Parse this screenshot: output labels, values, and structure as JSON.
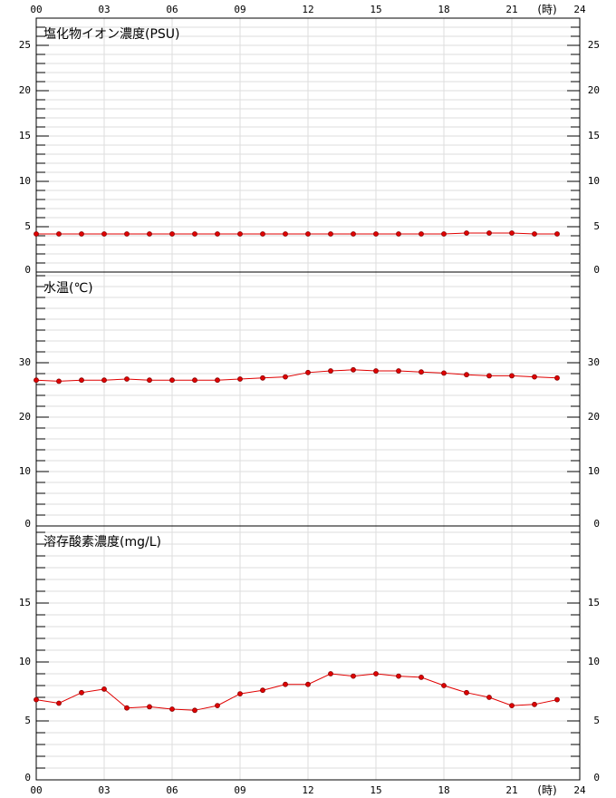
{
  "chart_data": [
    {
      "type": "line",
      "title": "塩化物イオン濃度(PSU)",
      "x_unit_label": "(時)",
      "x": [
        0,
        1,
        2,
        3,
        4,
        5,
        6,
        7,
        8,
        9,
        10,
        11,
        12,
        13,
        14,
        15,
        16,
        17,
        18,
        19,
        20,
        21,
        22,
        23
      ],
      "xlim": [
        0,
        24
      ],
      "xticks": [
        {
          "value": 0,
          "label": "00"
        },
        {
          "value": 3,
          "label": "03"
        },
        {
          "value": 6,
          "label": "06"
        },
        {
          "value": 9,
          "label": "09"
        },
        12,
        15,
        18,
        21,
        24
      ],
      "series": [
        {
          "color": "#e00000",
          "values": [
            4.2,
            4.2,
            4.2,
            4.2,
            4.2,
            4.2,
            4.2,
            4.2,
            4.2,
            4.2,
            4.2,
            4.2,
            4.2,
            4.2,
            4.2,
            4.2,
            4.2,
            4.2,
            4.2,
            4.3,
            4.3,
            4.3,
            4.2,
            4.2
          ]
        }
      ],
      "ylim": [
        0,
        28
      ],
      "yticks": [
        0,
        5,
        10,
        15,
        20,
        25
      ],
      "minor_grid_step": 1,
      "grid": true
    },
    {
      "type": "line",
      "title": "水温(℃)",
      "x": [
        0,
        1,
        2,
        3,
        4,
        5,
        6,
        7,
        8,
        9,
        10,
        11,
        12,
        13,
        14,
        15,
        16,
        17,
        18,
        19,
        20,
        21,
        22,
        23
      ],
      "xlim": [
        0,
        24
      ],
      "series": [
        {
          "color": "#e00000",
          "values": [
            26.8,
            26.6,
            26.8,
            26.8,
            27.0,
            26.8,
            26.8,
            26.8,
            26.8,
            27.0,
            27.2,
            27.4,
            28.2,
            28.5,
            28.7,
            28.5,
            28.5,
            28.3,
            28.1,
            27.8,
            27.6,
            27.6,
            27.4,
            27.2
          ]
        }
      ],
      "ylim": [
        0,
        46.67
      ],
      "yticks": [
        0,
        10,
        20,
        30
      ],
      "minor_grid_step": 2,
      "grid": true
    },
    {
      "type": "line",
      "title": "溶存酸素濃度(mg/L)",
      "x_unit_label": "(時)",
      "x": [
        0,
        1,
        2,
        3,
        4,
        5,
        6,
        7,
        8,
        9,
        10,
        11,
        12,
        13,
        14,
        15,
        16,
        17,
        18,
        19,
        20,
        21,
        22,
        23
      ],
      "xlim": [
        0,
        24
      ],
      "xticks": [
        {
          "value": 0,
          "label": "00"
        },
        {
          "value": 3,
          "label": "03"
        },
        {
          "value": 6,
          "label": "06"
        },
        {
          "value": 9,
          "label": "09"
        },
        12,
        15,
        18,
        21,
        24
      ],
      "series": [
        {
          "color": "#e00000",
          "values": [
            6.8,
            6.5,
            7.4,
            7.7,
            6.1,
            6.2,
            6.0,
            5.9,
            6.3,
            7.3,
            7.6,
            8.1,
            8.1,
            9.0,
            8.8,
            9.0,
            8.8,
            8.7,
            8.0,
            7.4,
            7.0,
            6.3,
            6.4,
            6.8
          ]
        }
      ],
      "ylim": [
        0,
        21.54
      ],
      "yticks": [
        0,
        5,
        10,
        15
      ],
      "minor_grid_step": 1,
      "grid": true
    }
  ]
}
